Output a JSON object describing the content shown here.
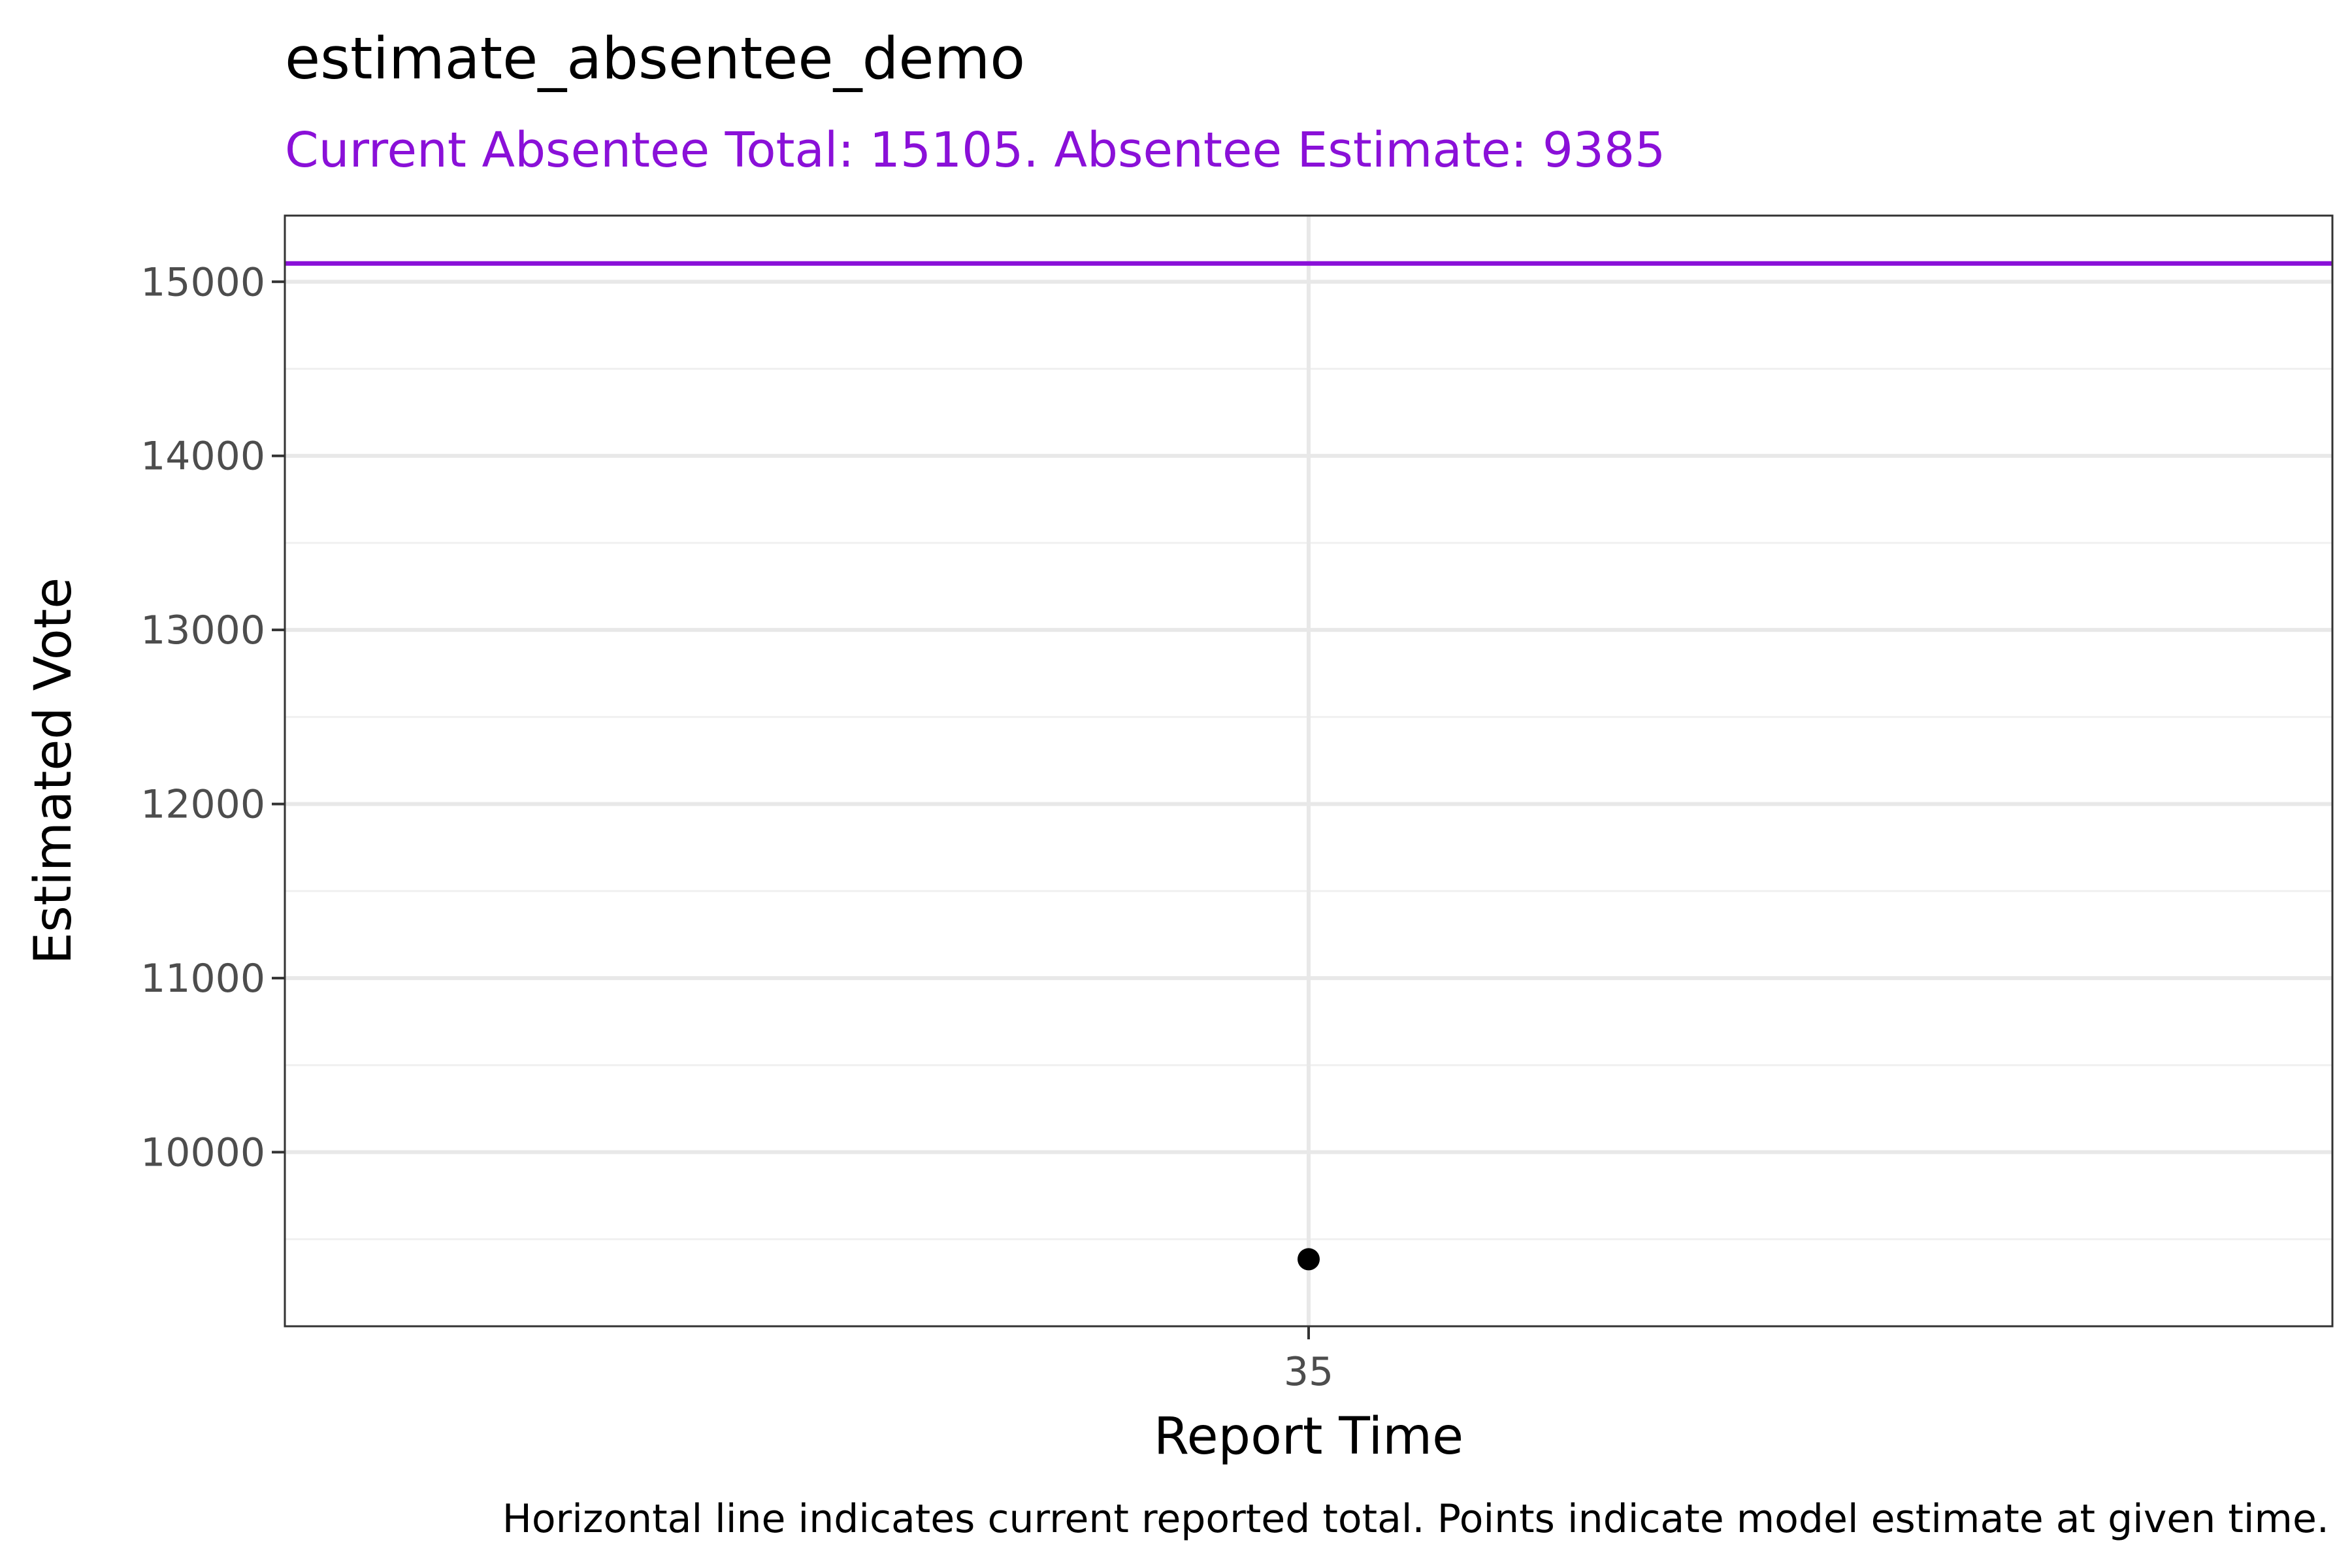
{
  "chart_data": {
    "type": "scatter",
    "title": "estimate_absentee_demo",
    "subtitle": "Current Absentee Total: 15105. Absentee Estimate: 9385",
    "xlabel": "Report Time",
    "ylabel": "Estimated Vote",
    "caption": "Horizontal line indicates current reported total. Points indicate model estimate at given time.",
    "x_categories": [
      "35"
    ],
    "points": [
      {
        "x": "35",
        "y": 9385
      }
    ],
    "reference_line": {
      "y": 15105,
      "label": "current reported total"
    },
    "y_ticks": [
      10000,
      11000,
      12000,
      13000,
      14000,
      15000
    ],
    "y_tick_labels": [
      "10000",
      "11000",
      "12000",
      "13000",
      "14000",
      "15000"
    ],
    "ylim": [
      9000,
      15380
    ],
    "grid": true,
    "colors": {
      "accent": "#8a10d8",
      "point": "#000000"
    }
  }
}
